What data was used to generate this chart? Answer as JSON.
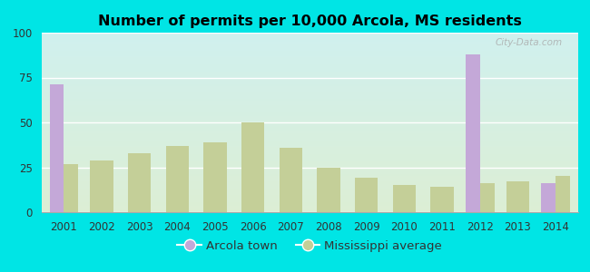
{
  "title": "Number of permits per 10,000 Arcola, MS residents",
  "years": [
    2001,
    2002,
    2003,
    2004,
    2005,
    2006,
    2007,
    2008,
    2009,
    2010,
    2011,
    2012,
    2013,
    2014
  ],
  "arcola": [
    71,
    0,
    0,
    0,
    0,
    0,
    0,
    0,
    0,
    0,
    0,
    88,
    0,
    16
  ],
  "ms_avg": [
    27,
    29,
    33,
    37,
    39,
    50,
    36,
    25,
    19,
    15,
    14,
    16,
    17,
    20
  ],
  "arcola_color": "#c4a8d8",
  "ms_avg_color": "#c4cf98",
  "ylim": [
    0,
    100
  ],
  "yticks": [
    0,
    25,
    50,
    75,
    100
  ],
  "outer_bg": "#00e5e5",
  "legend_arcola": "Arcola town",
  "legend_ms": "Mississippi average",
  "bar_width": 0.38,
  "watermark": "City-Data.com"
}
